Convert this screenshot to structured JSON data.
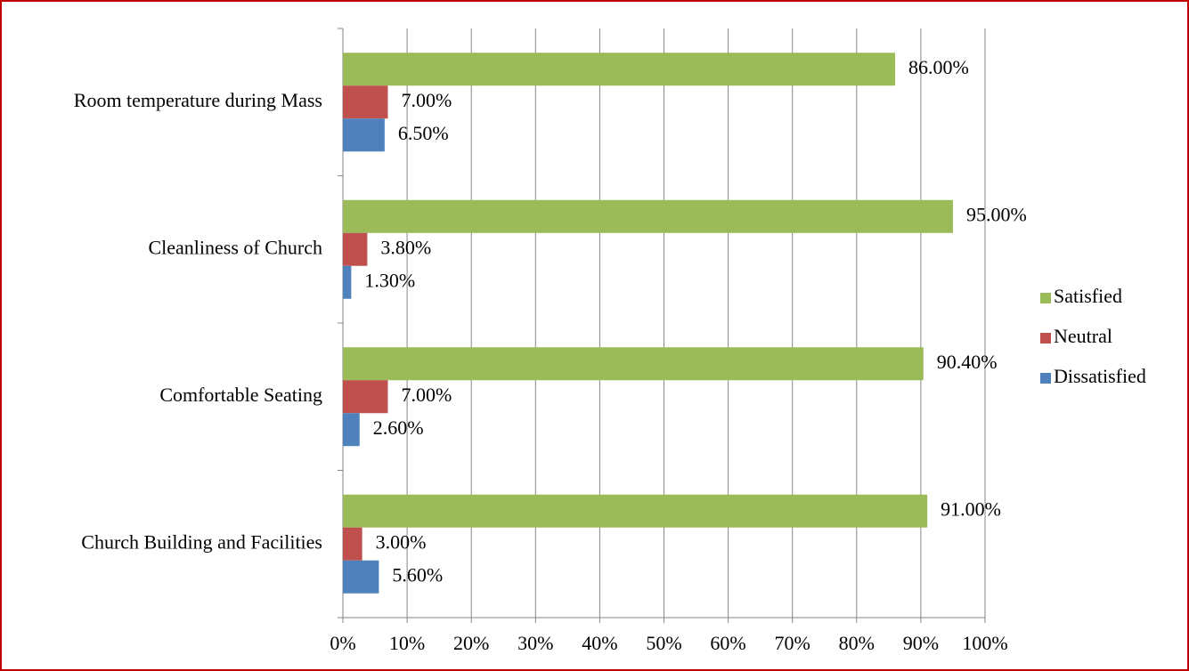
{
  "chart_data": {
    "type": "hbar",
    "categories": [
      "Room temperature during Mass",
      "Cleanliness of Church",
      "Comfortable Seating",
      "Church Building and Facilities"
    ],
    "series": [
      {
        "name": "Satisfied",
        "color": "#9bbb59",
        "values": [
          86,
          95,
          90.4,
          91
        ],
        "value_labels": [
          "86.00%",
          "95.00%",
          "90.40%",
          "91.00%"
        ]
      },
      {
        "name": "Neutral",
        "color": "#c0504d",
        "values": [
          7,
          3.8,
          7,
          3
        ],
        "value_labels": [
          "7.00%",
          "3.80%",
          "7.00%",
          "3.00%"
        ]
      },
      {
        "name": "Dissatisfied",
        "color": "#4f81bd",
        "values": [
          6.5,
          1.3,
          2.6,
          5.6
        ],
        "value_labels": [
          "6.50%",
          "1.30%",
          "2.60%",
          "5.60%"
        ]
      }
    ],
    "xlim": [
      0,
      100
    ],
    "xticks": [
      {
        "value": 0,
        "label": "0%"
      },
      {
        "value": 10,
        "label": "10%"
      },
      {
        "value": 20,
        "label": "20%"
      },
      {
        "value": 30,
        "label": "30%"
      },
      {
        "value": 40,
        "label": "40%"
      },
      {
        "value": 50,
        "label": "50%"
      },
      {
        "value": 60,
        "label": "60%"
      },
      {
        "value": 70,
        "label": "70%"
      },
      {
        "value": 80,
        "label": "80%"
      },
      {
        "value": 90,
        "label": "90%"
      },
      {
        "value": 100,
        "label": "100%"
      }
    ],
    "grid": true,
    "legend": "right"
  }
}
